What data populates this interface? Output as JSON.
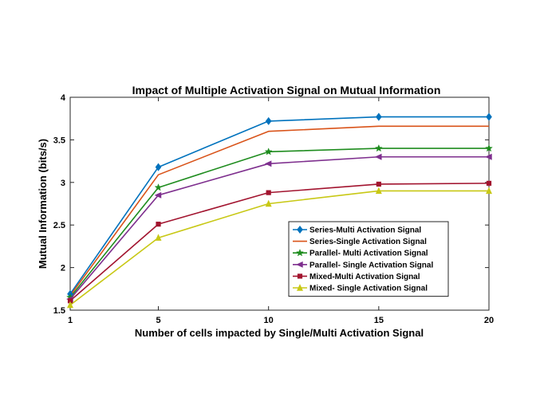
{
  "chart_data": {
    "type": "line",
    "title": "Impact of Multiple Activation Signal on Mutual Information",
    "xlabel": "Number of cells impacted by Single/Multi Activation Signal",
    "ylabel": "Mutual Information (bits/s)",
    "x": [
      1,
      5,
      10,
      15,
      20
    ],
    "xticks": [
      1,
      5,
      10,
      15,
      20
    ],
    "yticks": [
      1.5,
      2,
      2.5,
      3,
      3.5,
      4
    ],
    "xtick_labels": [
      "1",
      "5",
      "10",
      "15",
      "20"
    ],
    "ytick_labels": [
      "1.5",
      "2",
      "2.5",
      "3",
      "3.5",
      "4"
    ],
    "xlim": [
      1,
      20
    ],
    "ylim": [
      1.5,
      4
    ],
    "grid": false,
    "legend_position": "lower-right",
    "series": [
      {
        "name": "Series-Multi Activation Signal",
        "color": "#0072BD",
        "marker": "diamond",
        "values": [
          1.69,
          3.18,
          3.72,
          3.77,
          3.77
        ]
      },
      {
        "name": "Series-Single Activation Signal",
        "color": "#D95319",
        "marker": "none",
        "values": [
          1.67,
          3.09,
          3.6,
          3.66,
          3.66
        ]
      },
      {
        "name": "Parallel- Multi Activation Signal",
        "color": "#1E8C1E",
        "marker": "star",
        "values": [
          1.65,
          2.94,
          3.36,
          3.4,
          3.4
        ]
      },
      {
        "name": "Parallel- Single Activation Signal",
        "color": "#7E2F8E",
        "marker": "triangle-left",
        "values": [
          1.63,
          2.85,
          3.22,
          3.3,
          3.3
        ]
      },
      {
        "name": "Mixed-Multi Activation Signal",
        "color": "#A2142F",
        "marker": "square",
        "values": [
          1.61,
          2.51,
          2.88,
          2.98,
          2.99
        ]
      },
      {
        "name": "Mixed- Single Activation Signal",
        "color": "#C8C815",
        "marker": "triangle-up",
        "values": [
          1.56,
          2.35,
          2.75,
          2.9,
          2.9
        ]
      }
    ]
  }
}
